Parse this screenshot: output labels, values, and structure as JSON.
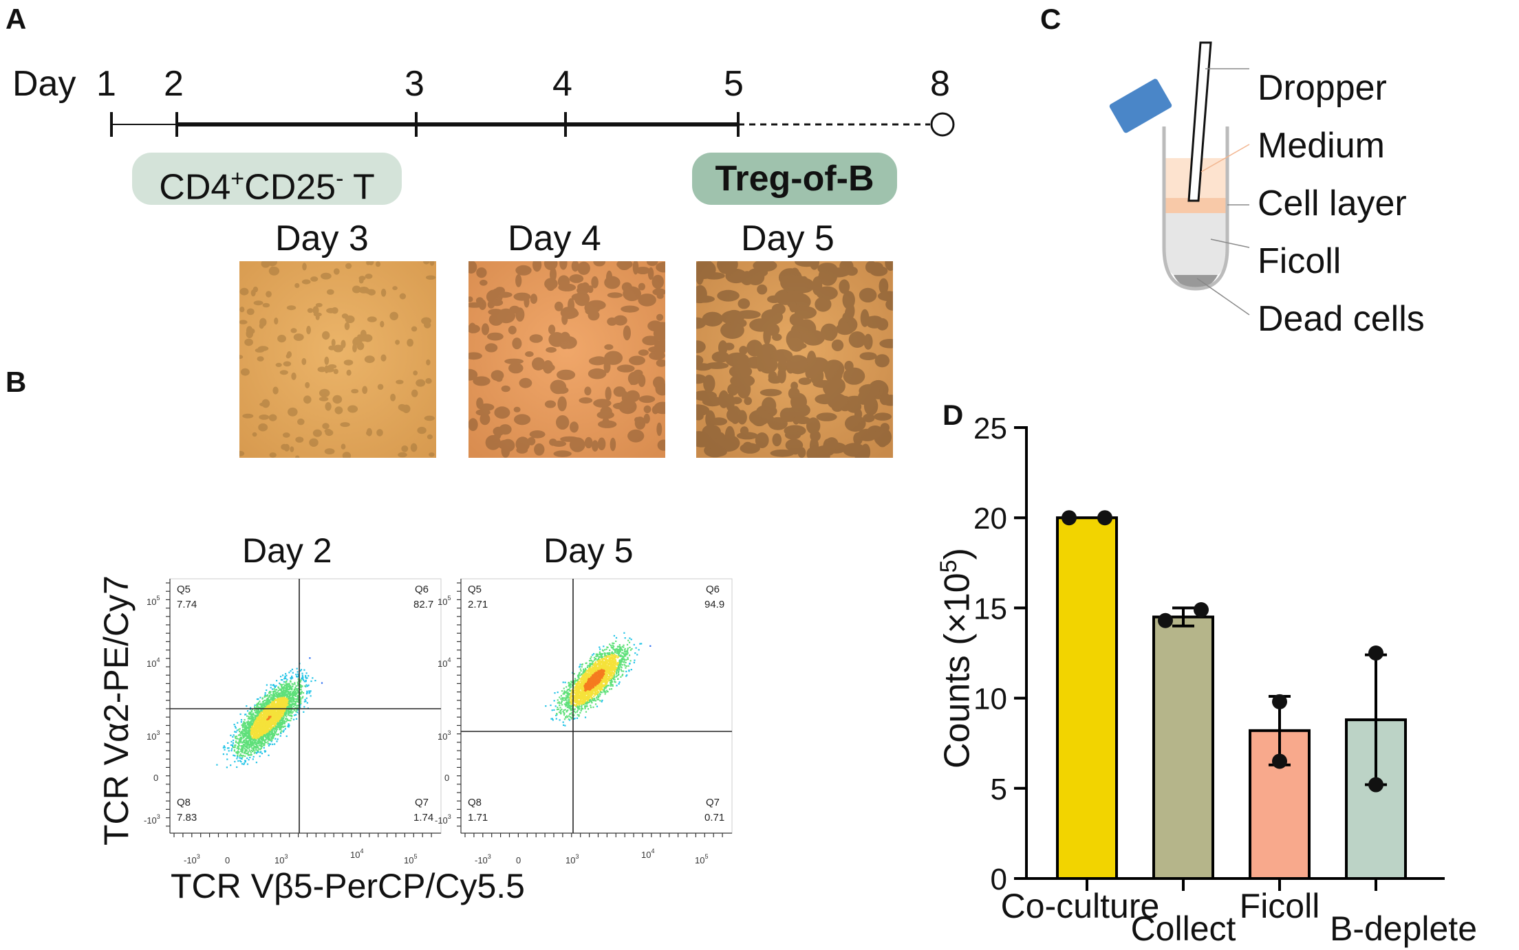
{
  "panel_labels": {
    "a": "A",
    "b": "B",
    "c": "C",
    "d": "D"
  },
  "timeline": {
    "day_prefix": "Day",
    "days": [
      "1",
      "2",
      "3",
      "4",
      "5",
      "8"
    ],
    "start_pill": {
      "main": "CD4",
      "sup1": "+",
      "mid": "CD25",
      "sup2": "-",
      "tail": " T"
    },
    "end_pill": "Treg-of-B",
    "photo_labels": [
      "Day 3",
      "Day 4",
      "Day 5"
    ],
    "colors": {
      "start_pill": "#d4e3d9",
      "end_pill": "#9fc2ad"
    }
  },
  "flow": {
    "y_axis_label": "TCR Vα2-PE/Cy7",
    "x_axis_label": "TCR Vβ5-PerCP/Cy5.5",
    "plots": [
      {
        "title": "Day 2",
        "y_ticks": [
          "10",
          "10",
          "10",
          "0",
          "-10"
        ],
        "y_exps": [
          "5",
          "4",
          "3",
          "",
          "3"
        ],
        "x_ticks": [
          "-10",
          "0",
          "10",
          "10",
          "10"
        ],
        "x_exps": [
          "3",
          "",
          "3",
          "4",
          "5"
        ],
        "quadrants": [
          {
            "name": "Q5",
            "value": "7.74"
          },
          {
            "name": "Q6",
            "value": "82.7"
          },
          {
            "name": "Q8",
            "value": "7.83"
          },
          {
            "name": "Q7",
            "value": "1.74"
          }
        ]
      },
      {
        "title": "Day 5",
        "y_ticks": [
          "10",
          "10",
          "10",
          "0",
          "-10"
        ],
        "y_exps": [
          "5",
          "4",
          "3",
          "",
          "3"
        ],
        "x_ticks": [
          "-10",
          "0",
          "10",
          "10",
          "10"
        ],
        "x_exps": [
          "3",
          "",
          "3",
          "4",
          "5"
        ],
        "quadrants": [
          {
            "name": "Q5",
            "value": "2.71"
          },
          {
            "name": "Q6",
            "value": "94.9"
          },
          {
            "name": "Q8",
            "value": "1.71"
          },
          {
            "name": "Q7",
            "value": "0.71"
          }
        ]
      }
    ]
  },
  "ficoll_diagram": {
    "labels": [
      "Dropper",
      "Medium",
      "Cell layer",
      "Ficoll",
      "Dead cells"
    ],
    "colors": {
      "cap": "#4a86c8",
      "medium": "#fde3cf",
      "cell_layer": "#f8c9a8",
      "ficoll": "#e6e6e6",
      "dead_cells": "#999999"
    }
  },
  "chart_data": {
    "type": "bar",
    "ylabel": "Counts (×10",
    "ylabel_exp": "5",
    "ylabel_close": ")",
    "ylim": [
      0,
      25
    ],
    "yticks": [
      0,
      5,
      10,
      15,
      20,
      25
    ],
    "categories": [
      "Co-culture",
      "Collect",
      "Ficoll",
      "B-deplete"
    ],
    "values": [
      20,
      14.5,
      8.2,
      8.8
    ],
    "errors": [
      0,
      0.5,
      1.9,
      3.6
    ],
    "points": [
      [
        20,
        20
      ],
      [
        14.3,
        14.9
      ],
      [
        9.8,
        6.5
      ],
      [
        12.5,
        5.2
      ]
    ],
    "colors": [
      "#f2d400",
      "#b5b58a",
      "#f8a98c",
      "#bcd3c6"
    ]
  }
}
